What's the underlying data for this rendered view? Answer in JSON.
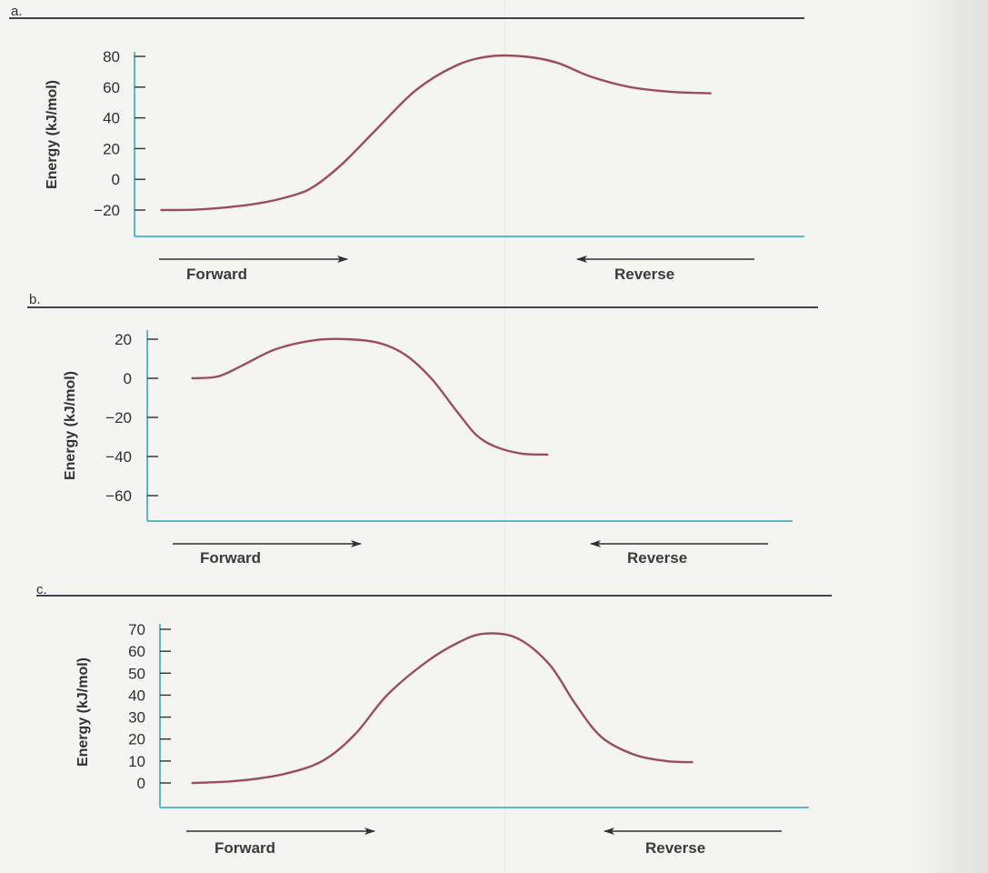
{
  "colors": {
    "axis": "#5fb6c6",
    "curve": "#9a4d5a",
    "rule": "#3e4552",
    "text": "#2f2f34",
    "arrow": "#2f2f34"
  },
  "chart_data": [
    {
      "type": "line",
      "panel_label": "a.",
      "ylabel": "Energy (kJ/mol)",
      "xlabel": "",
      "yticks": [
        80,
        60,
        40,
        20,
        0,
        -20
      ],
      "yticks_display": [
        "80",
        "60",
        "40",
        "20",
        "0",
        "−20"
      ],
      "ylim": [
        -37,
        85
      ],
      "xlim": [
        0,
        1
      ],
      "direction_labels": {
        "left": "Forward",
        "right": "Reverse"
      },
      "series": [
        {
          "x": [
            0.04,
            0.1,
            0.18,
            0.24,
            0.27,
            0.31,
            0.36,
            0.42,
            0.48,
            0.53,
            0.58,
            0.63,
            0.68,
            0.74,
            0.8,
            0.86
          ],
          "y": [
            -20,
            -19.5,
            -16,
            -10,
            -4,
            10,
            32,
            58,
            74,
            80,
            80,
            76,
            67,
            60,
            57,
            56
          ]
        }
      ]
    },
    {
      "type": "line",
      "panel_label": "b.",
      "ylabel": "Energy (kJ/mol)",
      "xlabel": "",
      "yticks": [
        20,
        0,
        -20,
        -40,
        -60
      ],
      "yticks_display": [
        "20",
        "0",
        "−20",
        "−40",
        "−60"
      ],
      "ylim": [
        -73,
        25
      ],
      "xlim": [
        0,
        1
      ],
      "direction_labels": {
        "left": "Forward",
        "right": "Reverse"
      },
      "series": [
        {
          "x": [
            0.07,
            0.11,
            0.15,
            0.2,
            0.26,
            0.31,
            0.36,
            0.4,
            0.44,
            0.48,
            0.51,
            0.54,
            0.58,
            0.62
          ],
          "y": [
            0,
            1,
            7,
            15,
            19.5,
            20,
            18,
            12,
            0,
            -17,
            -29,
            -35,
            -38.5,
            -39
          ]
        }
      ]
    },
    {
      "type": "line",
      "panel_label": "c.",
      "ylabel": "Energy (kJ/mol)",
      "xlabel": "",
      "yticks": [
        70,
        60,
        50,
        40,
        30,
        20,
        10,
        0
      ],
      "yticks_display": [
        "70",
        "60",
        "50",
        "40",
        "30",
        "20",
        "10",
        "0"
      ],
      "ylim": [
        -12,
        72
      ],
      "xlim": [
        0,
        1
      ],
      "direction_labels": {
        "left": "Forward",
        "right": "Reverse"
      },
      "series": [
        {
          "x": [
            0.05,
            0.12,
            0.19,
            0.25,
            0.3,
            0.35,
            0.41,
            0.46,
            0.5,
            0.55,
            0.6,
            0.64,
            0.68,
            0.73,
            0.78,
            0.82
          ],
          "y": [
            0,
            1,
            4,
            10,
            22,
            40,
            55,
            64,
            68,
            66,
            54,
            36,
            21,
            13,
            10,
            9.5
          ]
        }
      ]
    }
  ]
}
